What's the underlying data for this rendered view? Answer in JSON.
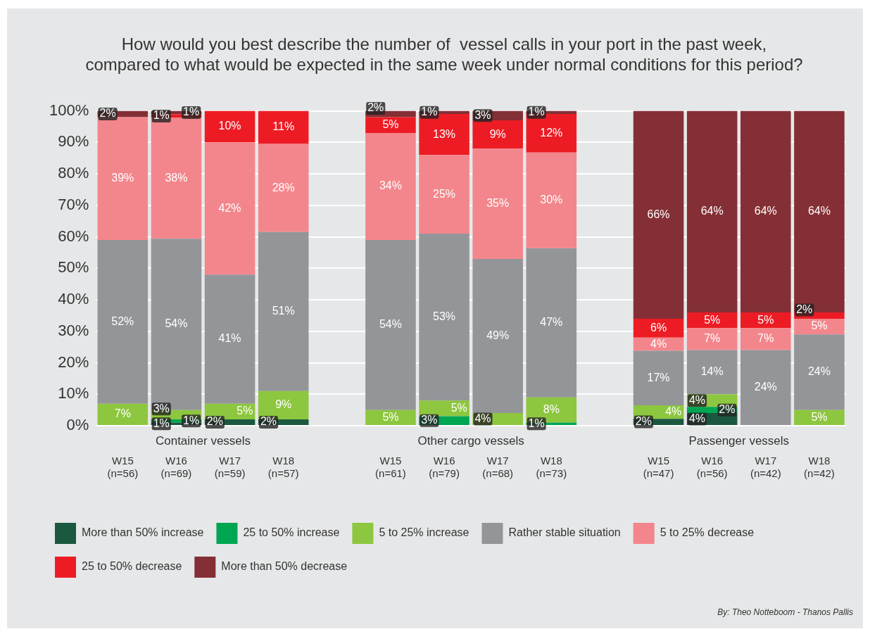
{
  "chart_data": {
    "type": "bar",
    "stacked": true,
    "title": "How would you best describe the number of  vessel calls in your port in the past week,\ncompared to what would be expected in the same week under normal conditions for this period?",
    "categories": [
      "W15\n(n=56)",
      "W16\n(n=69)",
      "W17\n(n=59)",
      "W18\n(n=57)",
      null,
      "W15\n(n=61)",
      "W16\n(n=79)",
      "W17\n(n=68)",
      "W18\n(n=73)",
      null,
      "W15\n(n=47)",
      "W16\n(n=56)",
      "W17\n(n=42)",
      "W18\n(n=42)"
    ],
    "series": [
      {
        "name": "More than 50% increase",
        "color": "#1a5940",
        "values": [
          null,
          1,
          2,
          2,
          null,
          null,
          null,
          null,
          null,
          null,
          2.2,
          4,
          null,
          null
        ],
        "value_labels": [
          null,
          "1%",
          "2%",
          "2%",
          null,
          null,
          null,
          null,
          null,
          null,
          "2%",
          "4%",
          null,
          null
        ]
      },
      {
        "name": "25 to 50% increase",
        "color": "#00a651",
        "values": [
          null,
          1,
          null,
          null,
          null,
          null,
          3,
          null,
          1,
          null,
          null,
          2,
          null,
          null
        ],
        "value_labels": [
          null,
          "1%",
          null,
          null,
          null,
          null,
          "3%",
          null,
          "1%",
          null,
          null,
          "2%",
          null,
          null
        ]
      },
      {
        "name": "5 to 25% increase",
        "color": "#8dc63f",
        "values": [
          7,
          3,
          5,
          9,
          null,
          5,
          5,
          4,
          8,
          null,
          4.3,
          4,
          null,
          5
        ],
        "value_labels": [
          "7%",
          "3%",
          "5%",
          "9%",
          null,
          "5%",
          "5%",
          "4%",
          "8%",
          null,
          "4%",
          "4%",
          null,
          "5%"
        ]
      },
      {
        "name": "Rather stable situation",
        "color": "#939598",
        "values": [
          52,
          54.4,
          41,
          50.5,
          null,
          54,
          53,
          49,
          47.4,
          null,
          17.3,
          14,
          24,
          24
        ],
        "value_labels": [
          "52%",
          "54%",
          "41%",
          "51%",
          null,
          "54%",
          "53%",
          "49%",
          "47%",
          null,
          "17%",
          "14%",
          "24%",
          "24%"
        ]
      },
      {
        "name": "5 to 25% decrease",
        "color": "#f3868c",
        "values": [
          39,
          38.4,
          42,
          28,
          null,
          34,
          25,
          35,
          30.4,
          null,
          4.2,
          7,
          7,
          5
        ],
        "value_labels": [
          "39%",
          "38%",
          "42%",
          "28%",
          null,
          "34%",
          "25%",
          "35%",
          "30%",
          null,
          "4%",
          "7%",
          "7%",
          "5%"
        ]
      },
      {
        "name": "25 to 50% decrease",
        "color": "#ed1c24",
        "values": [
          null,
          1.1,
          10,
          10.5,
          null,
          5,
          13,
          9,
          12.2,
          null,
          6,
          5,
          5,
          2
        ],
        "value_labels": [
          null,
          "1%",
          "10%",
          "11%",
          null,
          "5%",
          "13%",
          "9%",
          "12%",
          null,
          "6%",
          "5%",
          "5%",
          "2%"
        ]
      },
      {
        "name": "More than 50% decrease",
        "color": "#842f35",
        "values": [
          2,
          1.1,
          null,
          null,
          null,
          2,
          1,
          3,
          1,
          null,
          66,
          64,
          64,
          64
        ],
        "value_labels": [
          "2%",
          "1%",
          null,
          null,
          null,
          "2%",
          "1%",
          "3%",
          "1%",
          null,
          "66%",
          "64%",
          "64%",
          "64%"
        ]
      }
    ],
    "ylim": [
      0,
      100
    ],
    "yticks": [
      {
        "value": 0,
        "label": "0%"
      },
      {
        "value": 10,
        "label": "10%"
      },
      {
        "value": 20,
        "label": "20%"
      },
      {
        "value": 30,
        "label": "30%"
      },
      {
        "value": 40,
        "label": "40%"
      },
      {
        "value": 50,
        "label": "50%"
      },
      {
        "value": 60,
        "label": "60%"
      },
      {
        "value": 70,
        "label": "70%"
      },
      {
        "value": 80,
        "label": "80%"
      },
      {
        "value": 90,
        "label": "90%"
      },
      {
        "value": 100,
        "label": "100%"
      }
    ],
    "grid": "y",
    "legend": "bottom",
    "annotations": [
      "Container vessels",
      "Other cargo vessels",
      "Passenger vessels",
      "By: Theo Notteboom - Thanos Pallis"
    ]
  }
}
